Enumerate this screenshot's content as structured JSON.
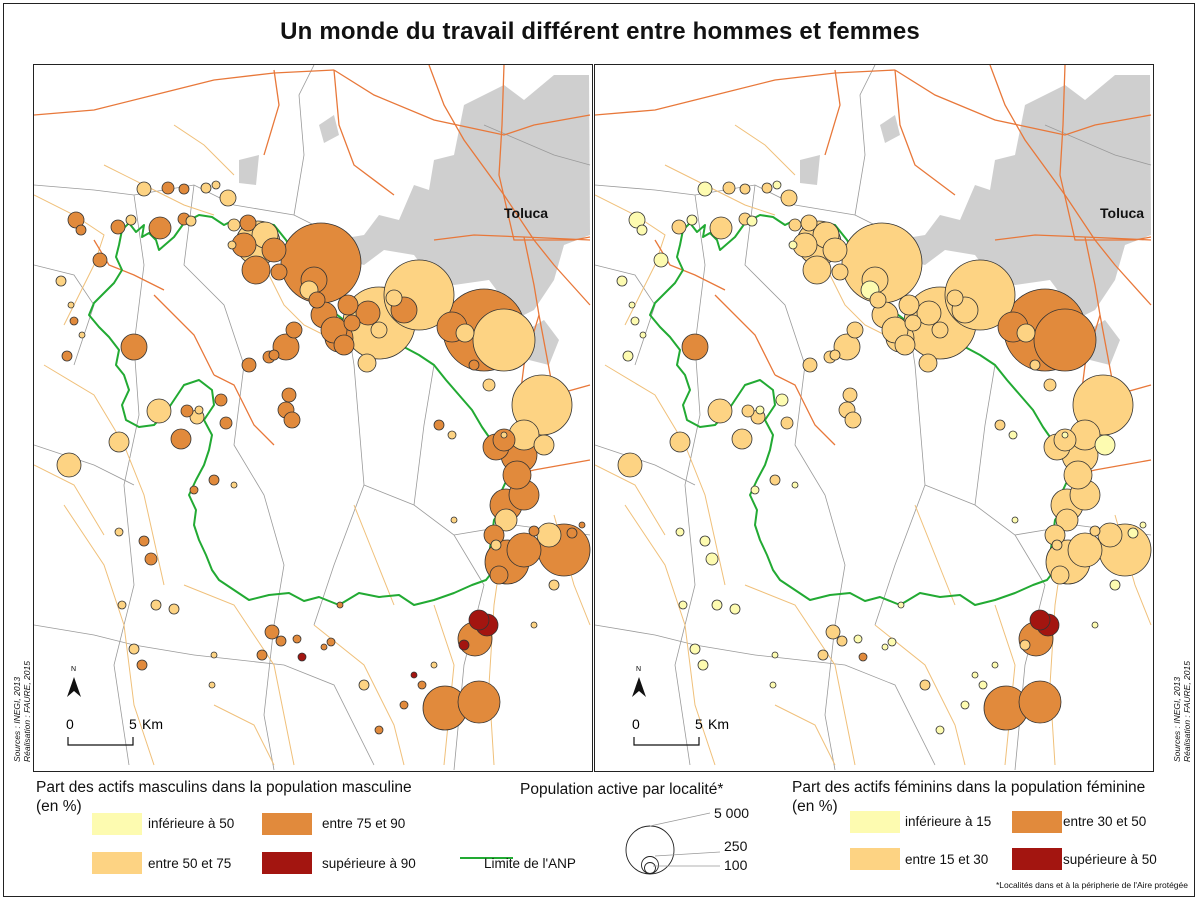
{
  "title": "Un monde du travail différent entre hommes et femmes",
  "city_label": "Toluca",
  "credits": {
    "sources": "Sources : INEGI, 2013",
    "realisation": "Réalisation : FAURE, 2015"
  },
  "scale_bar": {
    "zero": "0",
    "five": "5",
    "unit": "Km"
  },
  "north_label": "N",
  "legend_male": {
    "title_line1": "Part des actifs masculins dans la population masculine",
    "title_line2": "(en %)",
    "classes": [
      {
        "label": "inférieure à 50",
        "color": "#fdfbb0"
      },
      {
        "label": "entre 50 et 75",
        "color": "#fdd383"
      },
      {
        "label": "entre 75 et 90",
        "color": "#e18a3c"
      },
      {
        "label": "supérieure à 90",
        "color": "#a31510"
      }
    ]
  },
  "legend_female": {
    "title_line1": "Part des actifs féminins dans la population féminine",
    "title_line2": "(en %)",
    "classes": [
      {
        "label": "inférieure à 15",
        "color": "#fdfbb0"
      },
      {
        "label": "entre 15 et 30",
        "color": "#fdd383"
      },
      {
        "label": "entre  30 et  50",
        "color": "#e18a3c"
      },
      {
        "label": "supérieure à 50",
        "color": "#a31510"
      }
    ]
  },
  "legend_size": {
    "title": "Population active par localité*",
    "values": [
      "5 000",
      "250",
      "100"
    ]
  },
  "anp_label": "Limite de l'ANP",
  "footnote": "*Localités dans et  à la péripherie de l'Aire protégée",
  "colors": {
    "anp": "#22aa33",
    "road_main": "#e8783a",
    "road_secondary": "#f0c07a",
    "limits": "#9a9a9a",
    "urban": "#cfcfcf"
  }
}
